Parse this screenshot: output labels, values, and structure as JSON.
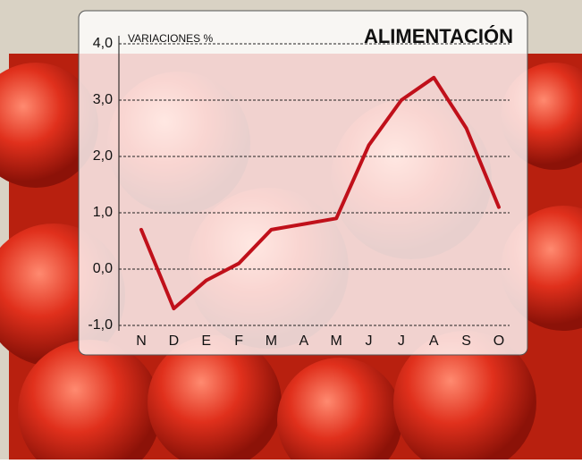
{
  "chart_data": {
    "type": "line",
    "title": "ALIMENTACIÓN",
    "y_axis_label": "VARIACIONES %",
    "categories": [
      "N",
      "D",
      "E",
      "F",
      "M",
      "A",
      "M",
      "J",
      "J",
      "A",
      "S",
      "O"
    ],
    "values": [
      0.7,
      -0.7,
      -0.2,
      0.1,
      0.7,
      0.8,
      0.9,
      2.2,
      3.0,
      3.4,
      2.5,
      1.1
    ],
    "color": "#c0101a",
    "ylim": [
      -1,
      4
    ],
    "yticks": [
      {
        "value": -1,
        "label": "-1,0"
      },
      {
        "value": 0,
        "label": "0,0"
      },
      {
        "value": 1,
        "label": "1,0"
      },
      {
        "value": 2,
        "label": "2,0"
      },
      {
        "value": 3,
        "label": "3,0"
      },
      {
        "value": 4,
        "label": "4,0"
      }
    ],
    "grid": true
  }
}
